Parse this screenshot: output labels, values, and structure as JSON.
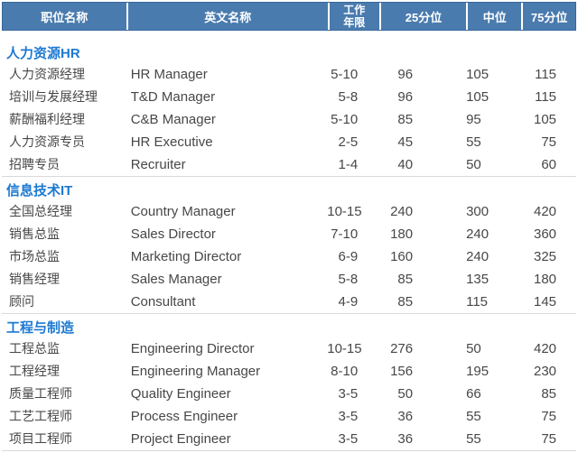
{
  "table": {
    "columns": [
      {
        "label": "职位名称"
      },
      {
        "label": "英文名称"
      },
      {
        "label": "工作\n年限"
      },
      {
        "label": "25分位"
      },
      {
        "label": "中位"
      },
      {
        "label": "75分位"
      }
    ],
    "sections": [
      {
        "name": "人力资源HR",
        "rows": [
          [
            "人力资源经理",
            "HR Manager",
            "5-10",
            "96",
            "105",
            "115"
          ],
          [
            "培训与发展经理",
            "T&D Manager",
            "5-8",
            "96",
            "105",
            "115"
          ],
          [
            "薪酬福利经理",
            "C&B Manager",
            "5-10",
            "85",
            "95",
            "105"
          ],
          [
            "人力资源专员",
            "HR Executive",
            "2-5",
            "45",
            "55",
            "75"
          ],
          [
            "招聘专员",
            "Recruiter",
            "1-4",
            "40",
            "50",
            "60"
          ]
        ]
      },
      {
        "name": "信息技术IT",
        "rows": [
          [
            "全国总经理",
            "Country Manager",
            "10-15",
            "240",
            "300",
            "420"
          ],
          [
            "销售总监",
            "Sales Director",
            "7-10",
            "180",
            "240",
            "360"
          ],
          [
            "市场总监",
            "Marketing Director",
            "6-9",
            "160",
            "240",
            "325"
          ],
          [
            "销售经理",
            "Sales Manager",
            "5-8",
            "85",
            "135",
            "180"
          ],
          [
            "顾问",
            "Consultant",
            "4-9",
            "85",
            "115",
            "145"
          ]
        ]
      },
      {
        "name": "工程与制造",
        "rows": [
          [
            "工程总监",
            "Engineering Director",
            "10-15",
            "276",
            "50",
            "420"
          ],
          [
            "工程经理",
            "Engineering Manager",
            "8-10",
            "156",
            "195",
            "230"
          ],
          [
            "质量工程师",
            "Quality Engineer",
            "3-5",
            "50",
            "66",
            "85"
          ],
          [
            "工艺工程师",
            "Process Engineer",
            "3-5",
            "36",
            "55",
            "75"
          ],
          [
            "项目工程师",
            "Project Engineer",
            "3-5",
            "36",
            "55",
            "75"
          ]
        ]
      }
    ]
  },
  "colors": {
    "header_bg": "#4a7bae",
    "header_border": "#3a689b",
    "header_text": "#ffffff",
    "section_title": "#1d79d2",
    "body_text": "#474747",
    "separator": "#d9d9d9"
  }
}
